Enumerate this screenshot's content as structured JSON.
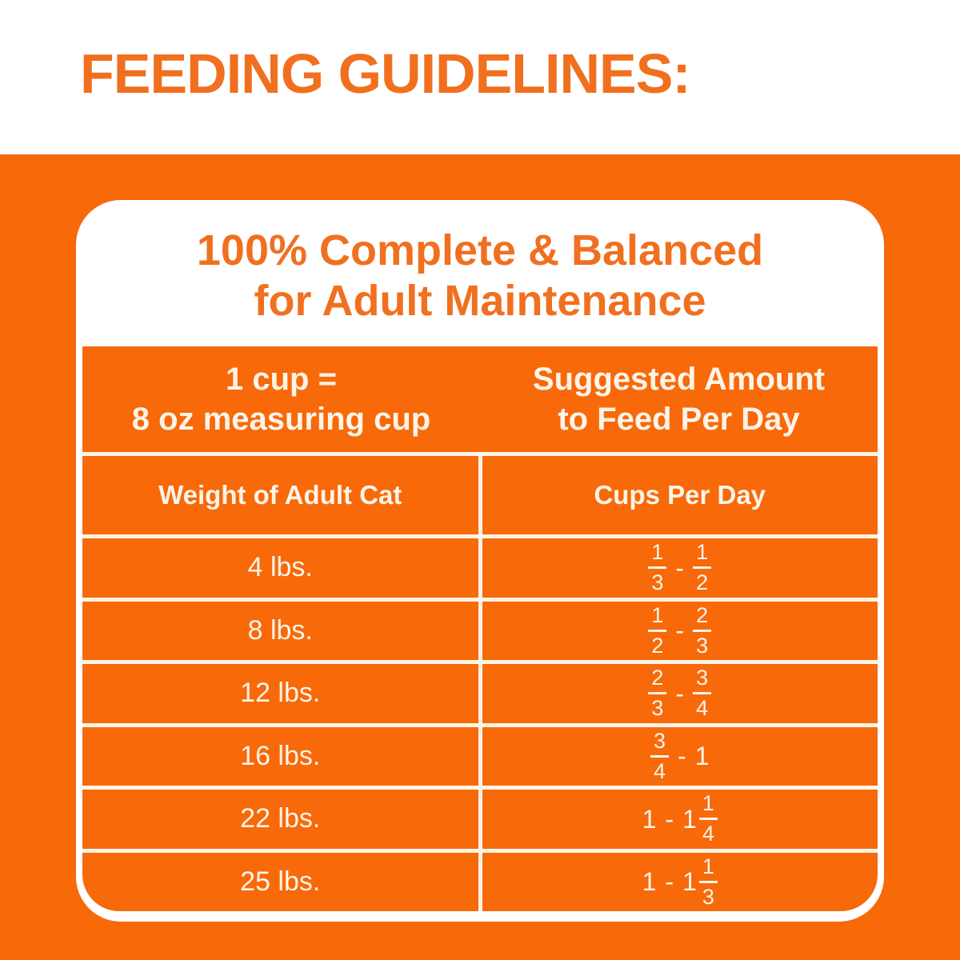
{
  "page": {
    "title": "FEEDING GUIDELINES:"
  },
  "card": {
    "heading_line1": "100% Complete & Balanced",
    "heading_line2": "for Adult Maintenance",
    "table": {
      "header_left_line1": "1 cup =",
      "header_left_line2": "8 oz measuring cup",
      "header_right_line1": "Suggested Amount",
      "header_right_line2": "to Feed Per Day",
      "col1_header": "Weight of Adult Cat",
      "col2_header": "Cups Per Day",
      "rows": [
        {
          "weight": "4 lbs.",
          "cups": [
            {
              "num": "1",
              "den": "3"
            },
            {
              "text": "-"
            },
            {
              "num": "1",
              "den": "2"
            }
          ]
        },
        {
          "weight": "8 lbs.",
          "cups": [
            {
              "num": "1",
              "den": "2"
            },
            {
              "text": "-"
            },
            {
              "num": "2",
              "den": "3"
            }
          ]
        },
        {
          "weight": "12 lbs.",
          "cups": [
            {
              "num": "2",
              "den": "3"
            },
            {
              "text": "-"
            },
            {
              "num": "3",
              "den": "4"
            }
          ]
        },
        {
          "weight": "16 lbs.",
          "cups": [
            {
              "num": "3",
              "den": "4"
            },
            {
              "text": "-"
            },
            {
              "text": "1"
            }
          ]
        },
        {
          "weight": "22 lbs.",
          "cups": [
            {
              "text": "1"
            },
            {
              "text": "-"
            },
            {
              "pre": "1",
              "num": "1",
              "den": "4"
            }
          ]
        },
        {
          "weight": "25 lbs.",
          "cups": [
            {
              "text": "1"
            },
            {
              "text": "-"
            },
            {
              "pre": "1",
              "num": "1",
              "den": "3"
            }
          ]
        }
      ]
    }
  },
  "chart_data": {
    "type": "table",
    "title": "100% Complete & Balanced for Adult Maintenance",
    "note": "1 cup = 8 oz measuring cup",
    "columns": [
      "Weight of Adult Cat",
      "Cups Per Day"
    ],
    "rows": [
      [
        "4 lbs.",
        "1/3 - 1/2"
      ],
      [
        "8 lbs.",
        "1/2 - 2/3"
      ],
      [
        "12 lbs.",
        "2/3 - 3/4"
      ],
      [
        "16 lbs.",
        "3/4 - 1"
      ],
      [
        "22 lbs.",
        "1 - 1 1/4"
      ],
      [
        "25 lbs.",
        "1 - 1 1/3"
      ]
    ]
  },
  "colors": {
    "background_orange": "#F8690A",
    "heading_text_orange": "#F0701F",
    "table_text_cream": "#FBF4E8",
    "card_white": "#FFFFFF"
  }
}
